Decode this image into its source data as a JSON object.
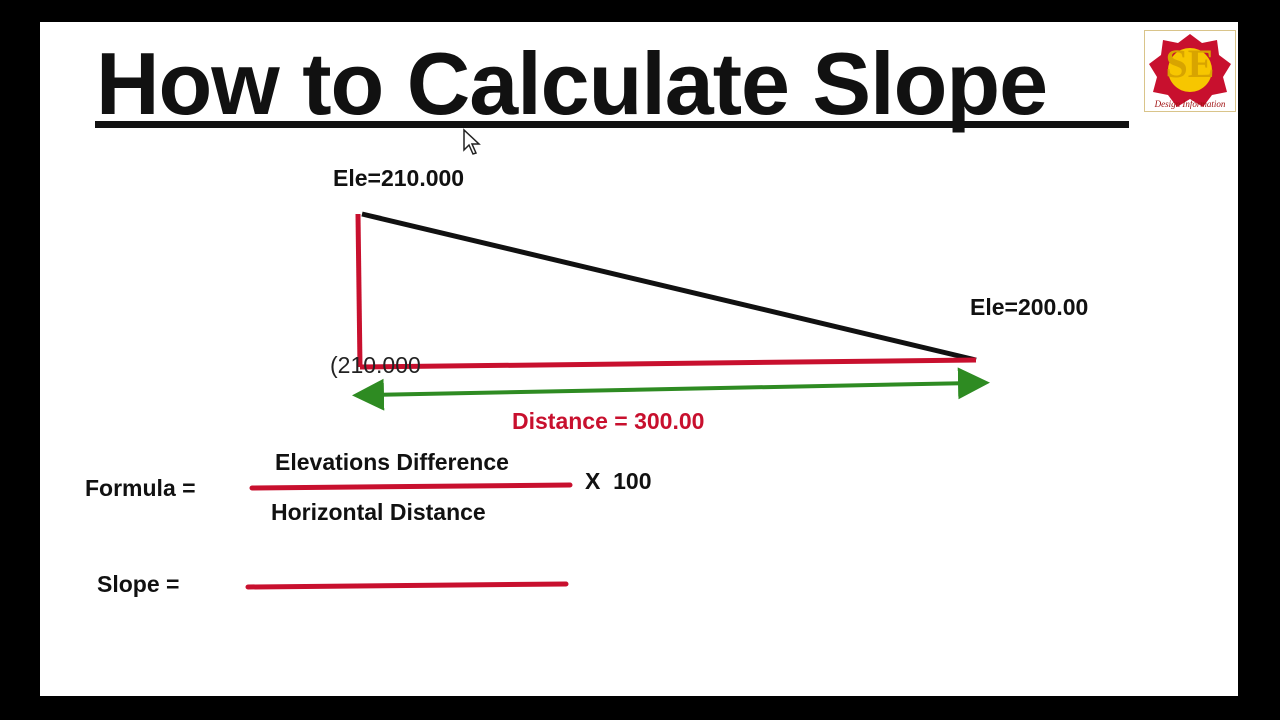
{
  "title": "How to Calculate Slope",
  "logo": {
    "letters": "SE",
    "subtitle": "Design Information",
    "colors": {
      "outer": "#c8102e",
      "inner": "#f7c600",
      "letters": "#d8a400"
    }
  },
  "diagram": {
    "top_elevation_label": "Ele=210.000",
    "right_elevation_label": "Ele=200.00",
    "left_base_label": "(210.000",
    "distance_label": "Distance = 300.00",
    "colors": {
      "hypotenuse": "#111111",
      "legs": "#c8102e",
      "distance_arrow": "#2e8b22"
    }
  },
  "formula": {
    "label": "Formula =",
    "numerator": "Elevations Difference",
    "denominator": "Horizontal Distance",
    "multiplier": "X  100",
    "line_color": "#c8102e"
  },
  "slope": {
    "label": "Slope ="
  },
  "cursor_icon": "pointer-arrow"
}
